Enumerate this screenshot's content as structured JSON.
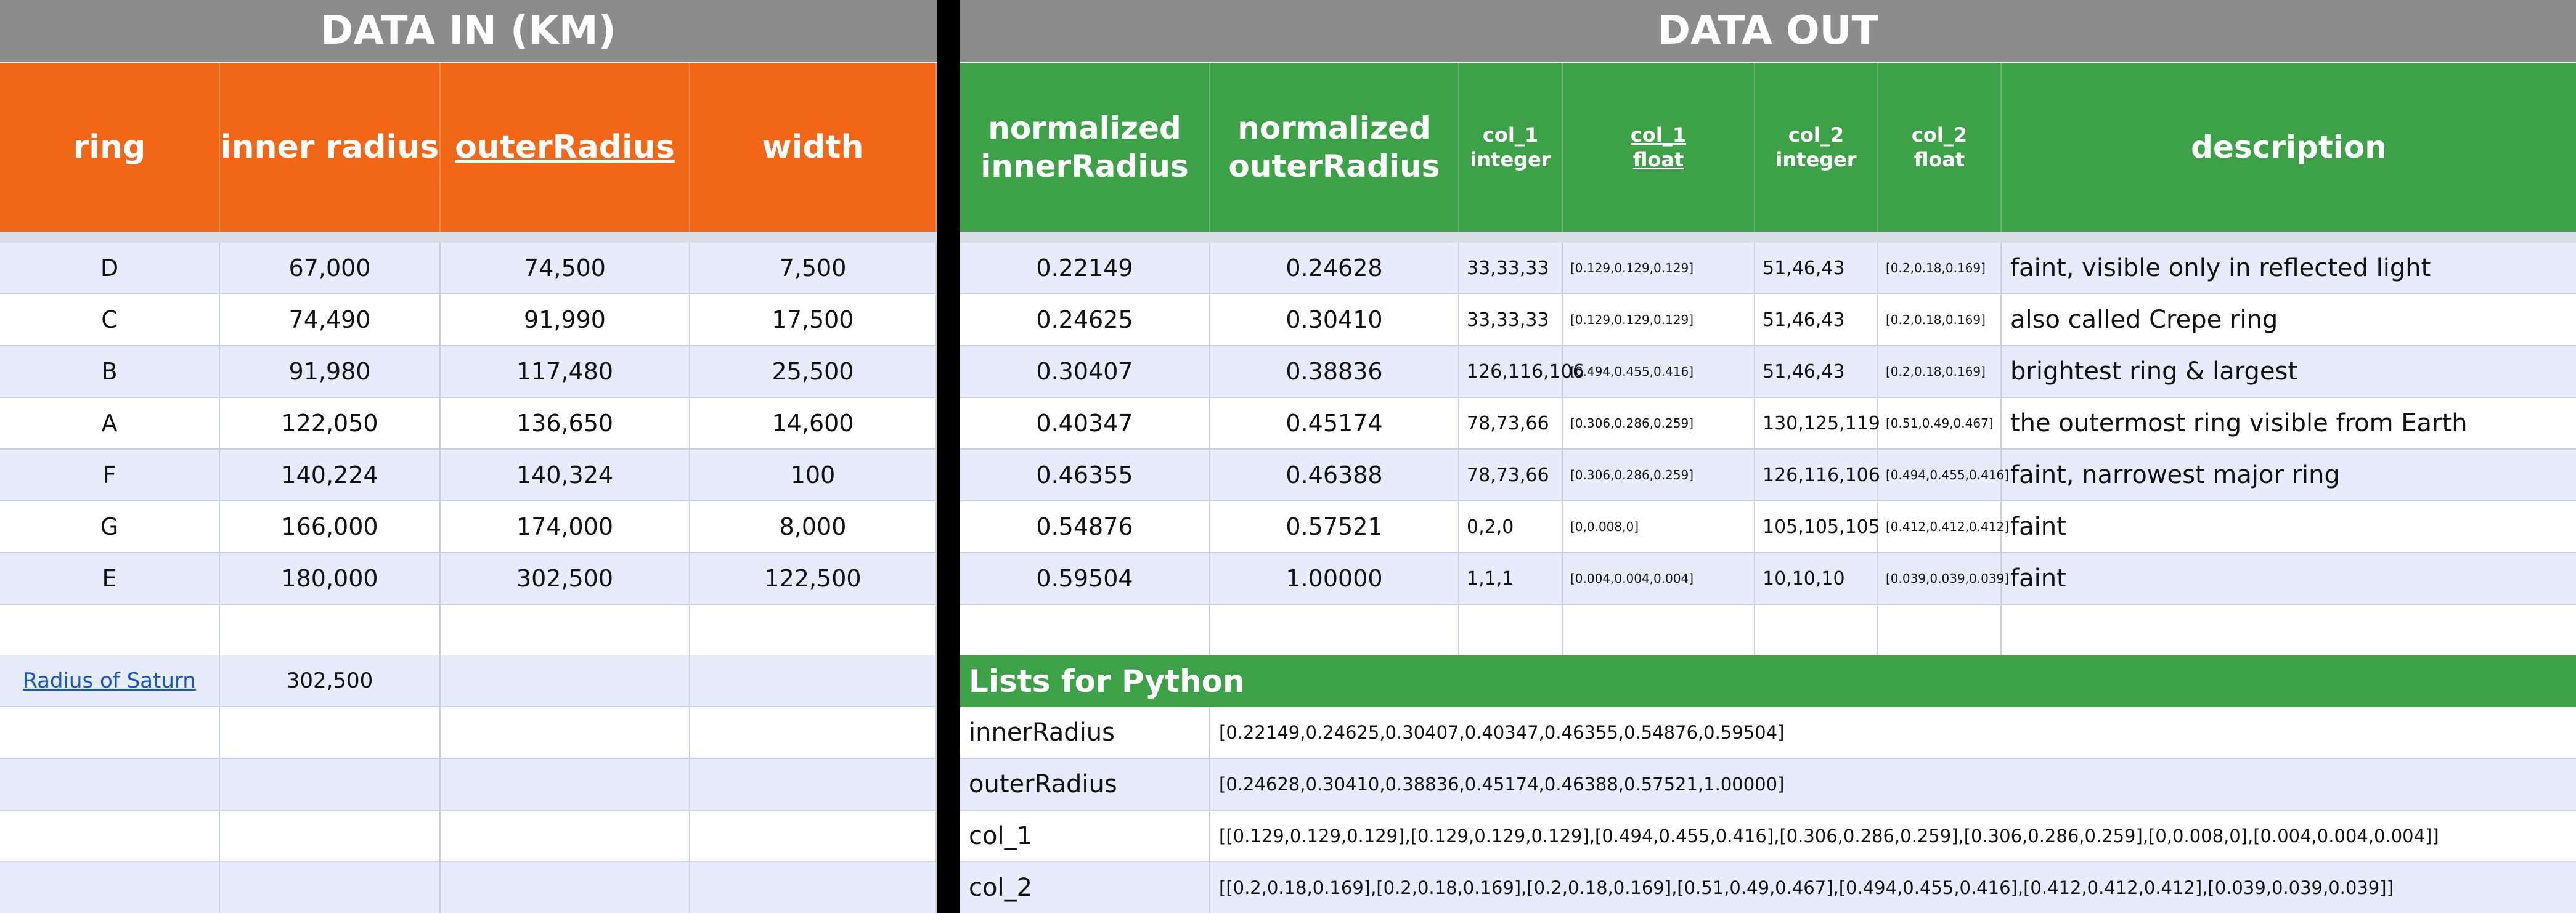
{
  "sections": {
    "data_in": "DATA IN (KM)",
    "data_out": "DATA OUT"
  },
  "headers_in": [
    "ring",
    "inner radius",
    "outerRadius",
    "width"
  ],
  "headers_out": [
    {
      "line1": "normalized",
      "line2": "innerRadius"
    },
    {
      "line1": "normalized",
      "line2": "outerRadius"
    },
    {
      "line1": "col_1",
      "line2": "integer"
    },
    {
      "line1": "col_1",
      "line2": "float"
    },
    {
      "line1": "col_2",
      "line2": "integer"
    },
    {
      "line1": "col_2",
      "line2": "float"
    },
    {
      "line1": "description",
      "line2": ""
    }
  ],
  "rows": [
    {
      "ring": "D",
      "inner": "67,000",
      "outer": "74,500",
      "width": "7,500",
      "nin": "0.22149",
      "nout": "0.24628",
      "c1i": "33,33,33",
      "c1f": "[0.129,0.129,0.129]",
      "c2i": "51,46,43",
      "c2f": "[0.2,0.18,0.169]",
      "desc": "faint, visible only in reflected light"
    },
    {
      "ring": "C",
      "inner": "74,490",
      "outer": "91,990",
      "width": "17,500",
      "nin": "0.24625",
      "nout": "0.30410",
      "c1i": "33,33,33",
      "c1f": "[0.129,0.129,0.129]",
      "c2i": "51,46,43",
      "c2f": "[0.2,0.18,0.169]",
      "desc": "also called Crepe ring"
    },
    {
      "ring": "B",
      "inner": "91,980",
      "outer": "117,480",
      "width": "25,500",
      "nin": "0.30407",
      "nout": "0.38836",
      "c1i": "126,116,106",
      "c1f": "[0.494,0.455,0.416]",
      "c2i": "51,46,43",
      "c2f": "[0.2,0.18,0.169]",
      "desc": "brightest ring & largest"
    },
    {
      "ring": "A",
      "inner": "122,050",
      "outer": "136,650",
      "width": "14,600",
      "nin": "0.40347",
      "nout": "0.45174",
      "c1i": "78,73,66",
      "c1f": "[0.306,0.286,0.259]",
      "c2i": "130,125,119",
      "c2f": "[0.51,0.49,0.467]",
      "desc": "the outermost ring visible from Earth"
    },
    {
      "ring": "F",
      "inner": "140,224",
      "outer": "140,324",
      "width": "100",
      "nin": "0.46355",
      "nout": "0.46388",
      "c1i": "78,73,66",
      "c1f": "[0.306,0.286,0.259]",
      "c2i": "126,116,106",
      "c2f": "[0.494,0.455,0.416]",
      "desc": "faint, narrowest major ring"
    },
    {
      "ring": "G",
      "inner": "166,000",
      "outer": "174,000",
      "width": "8,000",
      "nin": "0.54876",
      "nout": "0.57521",
      "c1i": "0,2,0",
      "c1f": "[0,0.008,0]",
      "c2i": "105,105,105",
      "c2f": "[0.412,0.412,0.412]",
      "desc": "faint"
    },
    {
      "ring": "E",
      "inner": "180,000",
      "outer": "302,500",
      "width": "122,500",
      "nin": "0.59504",
      "nout": "1.00000",
      "c1i": "1,1,1",
      "c1f": "[0.004,0.004,0.004]",
      "c2i": "10,10,10",
      "c2f": "[0.039,0.039,0.039]",
      "desc": "faint"
    }
  ],
  "saturn": {
    "label": "Radius of Saturn",
    "value": "302,500"
  },
  "python": {
    "title": "Lists for Python",
    "lists": [
      {
        "name": "innerRadius",
        "value": "[0.22149,0.24625,0.30407,0.40347,0.46355,0.54876,0.59504]"
      },
      {
        "name": "outerRadius",
        "value": "[0.24628,0.30410,0.38836,0.45174,0.46388,0.57521,1.00000]"
      },
      {
        "name": "col_1",
        "value": "[[0.129,0.129,0.129],[0.129,0.129,0.129],[0.494,0.455,0.416],[0.306,0.286,0.259],[0.306,0.286,0.259],[0,0.008,0],[0.004,0.004,0.004]]"
      },
      {
        "name": "col_2",
        "value": "[[0.2,0.18,0.169],[0.2,0.18,0.169],[0.2,0.18,0.169],[0.51,0.49,0.467],[0.494,0.455,0.416],[0.412,0.412,0.412],[0.039,0.039,0.039]]"
      }
    ]
  },
  "colors": {
    "orange": "#f26618",
    "green": "#3da148",
    "header_gray": "#8c8c8c",
    "row_alt": "#e6ecfb",
    "link": "#1a56c2"
  }
}
